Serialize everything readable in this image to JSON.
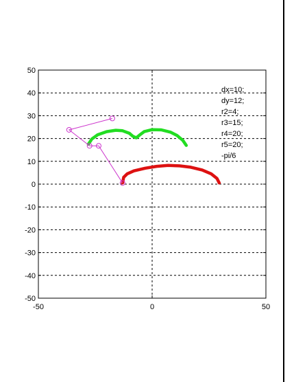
{
  "chart_data": {
    "type": "line",
    "title": "",
    "xlabel": "",
    "ylabel": "",
    "xlim": [
      -50,
      50
    ],
    "ylim": [
      -50,
      50
    ],
    "grid": true,
    "x_ticks": [
      -50,
      0,
      50
    ],
    "y_ticks": [
      50,
      40,
      30,
      20,
      10,
      0,
      -10,
      -20,
      -30,
      -40,
      -50
    ],
    "x_tick_labels": [
      "-50",
      "0",
      "50"
    ],
    "y_tick_labels": [
      "50",
      "40",
      "30",
      "20",
      "10",
      "0",
      "-10",
      "-20",
      "-30",
      "-40",
      "-50"
    ],
    "annotations": [
      "dx=10;",
      "dy=12;",
      "r2=4;",
      "r3=15;",
      "r4=20;",
      "r5=20;",
      "-pi/6"
    ],
    "annotation_position": "top-right",
    "series": [
      {
        "color": "#dd1111",
        "style": "thick-curve",
        "points": [
          [
            -13,
            0.5
          ],
          [
            -12.5,
            3
          ],
          [
            -11,
            4.5
          ],
          [
            -8,
            5.8
          ],
          [
            -3,
            7
          ],
          [
            2,
            7.8
          ],
          [
            7,
            8.2
          ],
          [
            12,
            8
          ],
          [
            17,
            7.4
          ],
          [
            22,
            6.2
          ],
          [
            26,
            4.5
          ],
          [
            28.5,
            2.5
          ],
          [
            29.5,
            0.5
          ]
        ]
      },
      {
        "color": "#22dd22",
        "style": "thick-curve",
        "points": [
          [
            -28,
            17.5
          ],
          [
            -26.5,
            19.8
          ],
          [
            -24,
            21.6
          ],
          [
            -20,
            23
          ],
          [
            -16,
            23.6
          ],
          [
            -13,
            23.4
          ],
          [
            -10,
            22.3
          ],
          [
            -8.5,
            21
          ],
          [
            -7,
            20.3
          ],
          [
            -5.5,
            21.5
          ],
          [
            -3.5,
            23
          ],
          [
            0,
            23.9
          ],
          [
            4,
            23.8
          ],
          [
            8,
            22.8
          ],
          [
            11,
            21.3
          ],
          [
            13.5,
            19.2
          ],
          [
            15,
            17
          ]
        ]
      },
      {
        "color": "#cc33cc",
        "style": "thin-line-circle-markers",
        "points": [
          [
            -13,
            0.5
          ],
          [
            -23.5,
            16.8
          ],
          [
            -27.5,
            16.8
          ],
          [
            -36.5,
            23.8
          ],
          [
            -17.5,
            28.8
          ]
        ]
      }
    ]
  }
}
